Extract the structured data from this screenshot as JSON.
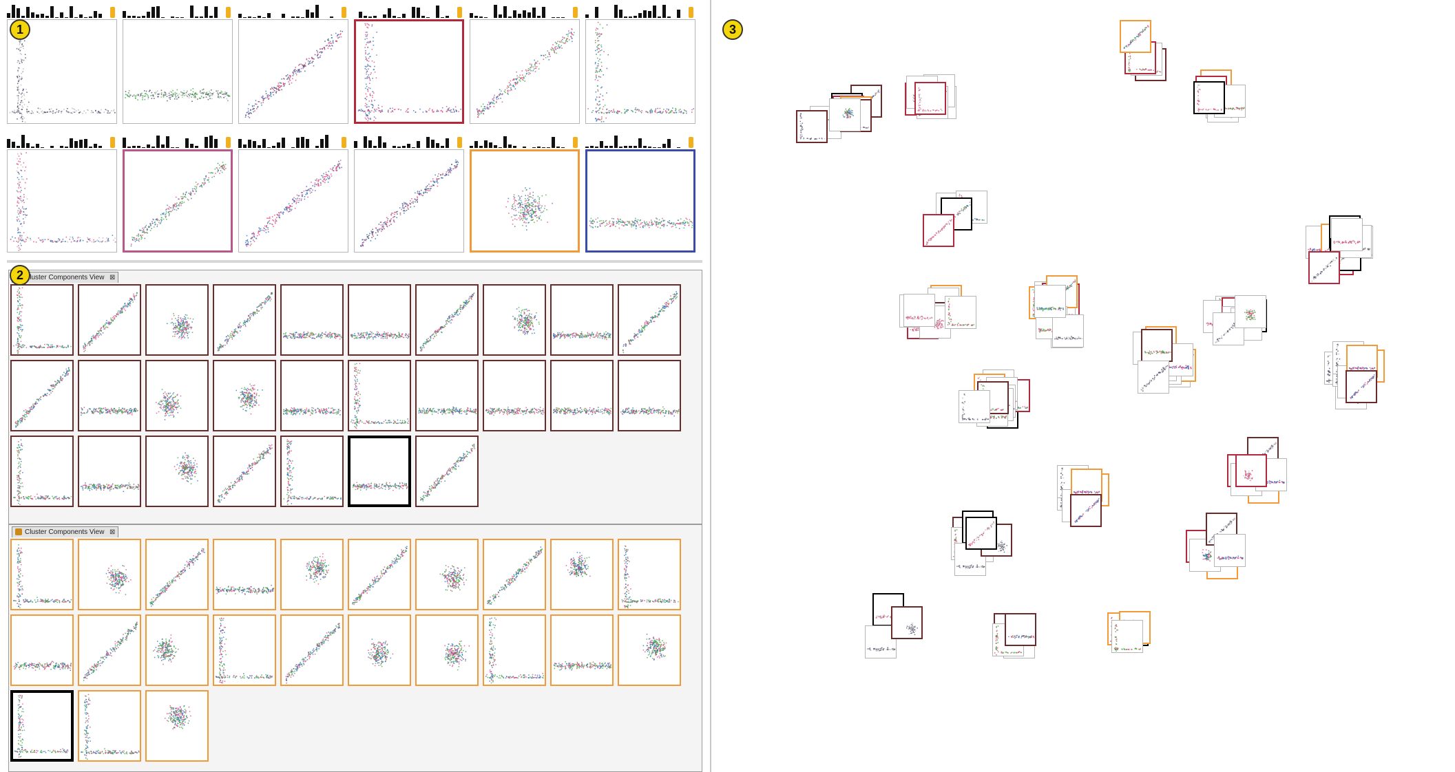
{
  "badges": [
    {
      "text": "1"
    },
    {
      "text": "2"
    },
    {
      "text": "3"
    }
  ],
  "panels": [
    {
      "title": "Cluster Components View"
    },
    {
      "title": "Cluster Components View"
    }
  ],
  "colors": {
    "pink": "#e0467a",
    "blue": "#2d6fb8",
    "green": "#3fa83f",
    "dark": "#4b4b6b",
    "lightgray": "#b5b5b5",
    "frame_red": "#b4283c",
    "frame_pink": "#b9568a",
    "frame_orange": "#f29a3a",
    "frame_blue": "#3a4ca8",
    "frame_maroon": "#6b2a2a",
    "frame_black": "#000000",
    "badge_yellow": "#f5d60b"
  }
}
